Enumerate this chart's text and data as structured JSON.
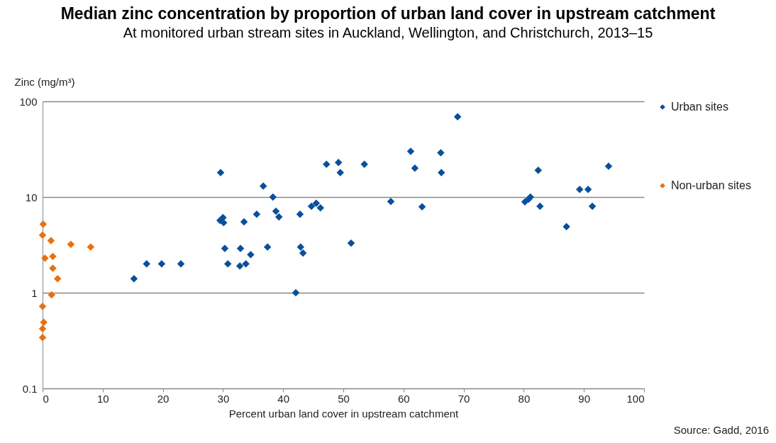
{
  "chart_data": {
    "type": "scatter",
    "title": "Median zinc concentration by proportion of urban land cover in upstream catchment",
    "subtitle": "At monitored urban stream sites in Auckland, Wellington, and Christchurch, 2013–15",
    "xlabel": "Percent urban land cover in upstream catchment",
    "ylabel": "Zinc (mg/m³)",
    "annotations": [
      "Source: Gadd, 2016"
    ],
    "series": [
      {
        "name": "Urban sites",
        "color": "#0a4f9c",
        "x": [
          15.2,
          17.3,
          19.8,
          23.0,
          29.6,
          29.5,
          30.0,
          30.1,
          30.3,
          30.8,
          32.9,
          32.8,
          33.5,
          33.8,
          34.6,
          35.6,
          36.7,
          37.4,
          38.3,
          38.8,
          39.3,
          42.1,
          42.8,
          42.9,
          43.3,
          44.7,
          45.5,
          45.9,
          46.2,
          47.2,
          49.2,
          49.5,
          53.5,
          51.3,
          57.9,
          61.2,
          61.9,
          63.1,
          66.2,
          66.3,
          69.0,
          80.2,
          80.8,
          81.1,
          82.4,
          82.7,
          87.1,
          89.3,
          90.7,
          91.4,
          94.1
        ],
        "values": [
          1.4,
          2,
          2,
          2,
          18,
          5.7,
          6.1,
          5.4,
          2.9,
          2,
          2.9,
          1.9,
          5.5,
          2,
          2.5,
          6.6,
          13,
          3,
          10,
          7.1,
          6.2,
          1,
          6.6,
          3,
          2.6,
          8,
          8.6,
          null,
          7.7,
          22,
          23,
          18,
          22,
          3.3,
          9,
          30,
          20,
          7.9,
          29,
          18,
          69,
          8.9,
          9.5,
          10,
          19,
          8,
          4.9,
          12,
          12,
          8,
          21
        ]
      },
      {
        "name": "Non-urban sites",
        "color": "#e8700f",
        "x": [
          0.1,
          0,
          1.4,
          4.7,
          8.0,
          0.4,
          1.7,
          1.7,
          2.5,
          1.5,
          0,
          0.2,
          0,
          0
        ],
        "values": [
          5.2,
          4,
          3.5,
          3.2,
          3,
          2.3,
          2.4,
          1.8,
          1.4,
          0.95,
          0.72,
          0.49,
          0.42,
          0.34
        ]
      }
    ],
    "xlim": [
      0,
      100
    ],
    "xticks": [
      0,
      10,
      20,
      30,
      40,
      50,
      60,
      70,
      80,
      90,
      100
    ],
    "ylim": [
      0.1,
      100
    ],
    "yticks": [
      0.1,
      1,
      10,
      100
    ],
    "log": true,
    "grid": "y",
    "legend": "right",
    "marker": "diamond"
  }
}
